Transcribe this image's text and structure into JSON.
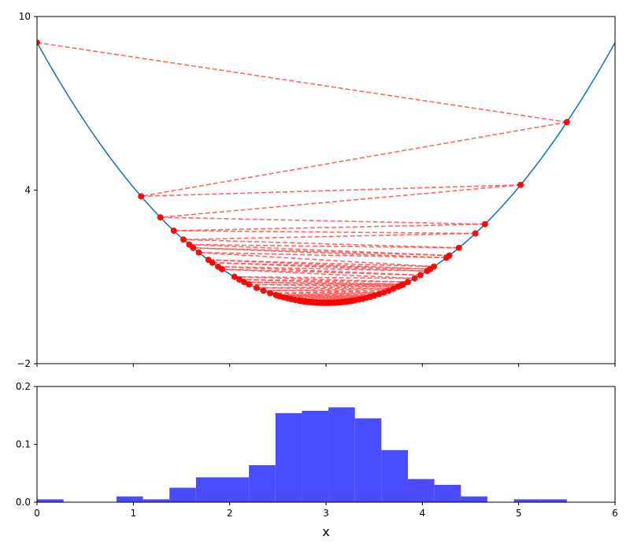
{
  "chart_data": [
    {
      "type": "line",
      "title": "",
      "xlabel": "",
      "ylabel": "",
      "xlim": [
        0,
        6
      ],
      "ylim": [
        -2,
        10
      ],
      "xticks": [
        0,
        1,
        2,
        3,
        4,
        5,
        6
      ],
      "xtick_labels_visible": false,
      "yticks": [
        -2,
        4,
        10
      ],
      "ytick_labels": [
        "−2",
        "4",
        "10"
      ],
      "grid": false,
      "colors": {
        "curve": "#1f77b4",
        "points": "#ff0000",
        "path": "#ff5555"
      },
      "curve": {
        "name": "",
        "function": "(x - 3)^2 + 0.1",
        "x_range": [
          0,
          6
        ]
      },
      "path_points_x": [
        0.0,
        5.5,
        1.08,
        5.02,
        1.28,
        4.65,
        1.42,
        4.55,
        1.52,
        4.38,
        1.58,
        4.28,
        1.62,
        4.25,
        1.68,
        4.12,
        1.78,
        4.08,
        1.82,
        4.05,
        1.88,
        3.98,
        1.92,
        3.92,
        2.05,
        3.85,
        2.1,
        3.8,
        2.15,
        3.78,
        2.2,
        3.75,
        2.28,
        3.7,
        2.35,
        3.65,
        2.42,
        3.6,
        2.48,
        3.55,
        2.52,
        3.5,
        2.56,
        3.46,
        2.6,
        3.42,
        2.64,
        3.38,
        2.68,
        3.34,
        2.72,
        3.3,
        2.76,
        3.26,
        2.8,
        3.22,
        2.84,
        3.18,
        2.88,
        3.14,
        2.92,
        3.1,
        2.96,
        3.06,
        3.0,
        3.02,
        2.98,
        3.04,
        2.94,
        3.08,
        2.9,
        3.12,
        2.86,
        3.16,
        2.82,
        3.2,
        2.78,
        3.24,
        2.74,
        3.28
      ]
    },
    {
      "type": "bar",
      "title": "",
      "xlabel": "x",
      "ylabel": "",
      "xlim": [
        0,
        6
      ],
      "ylim": [
        0,
        0.2
      ],
      "xticks": [
        0,
        1,
        2,
        3,
        4,
        5,
        6
      ],
      "xtick_labels": [
        "0",
        "1",
        "2",
        "3",
        "4",
        "5",
        "6"
      ],
      "yticks": [
        0,
        0.1,
        0.2
      ],
      "ytick_labels": [
        "0.0",
        "0.1",
        "0.2"
      ],
      "grid": false,
      "bar_color": "#4b4bff",
      "bin_width": 0.275,
      "bin_starts": [
        0.0,
        0.825,
        1.1,
        1.375,
        1.65,
        1.925,
        2.2,
        2.475,
        2.75,
        3.025,
        3.3,
        3.575,
        3.85,
        4.125,
        4.4,
        4.95,
        5.225
      ],
      "values": [
        0.005,
        0.01,
        0.005,
        0.025,
        0.043,
        0.043,
        0.064,
        0.154,
        0.158,
        0.164,
        0.145,
        0.09,
        0.04,
        0.03,
        0.01,
        0.005,
        0.005
      ]
    }
  ]
}
